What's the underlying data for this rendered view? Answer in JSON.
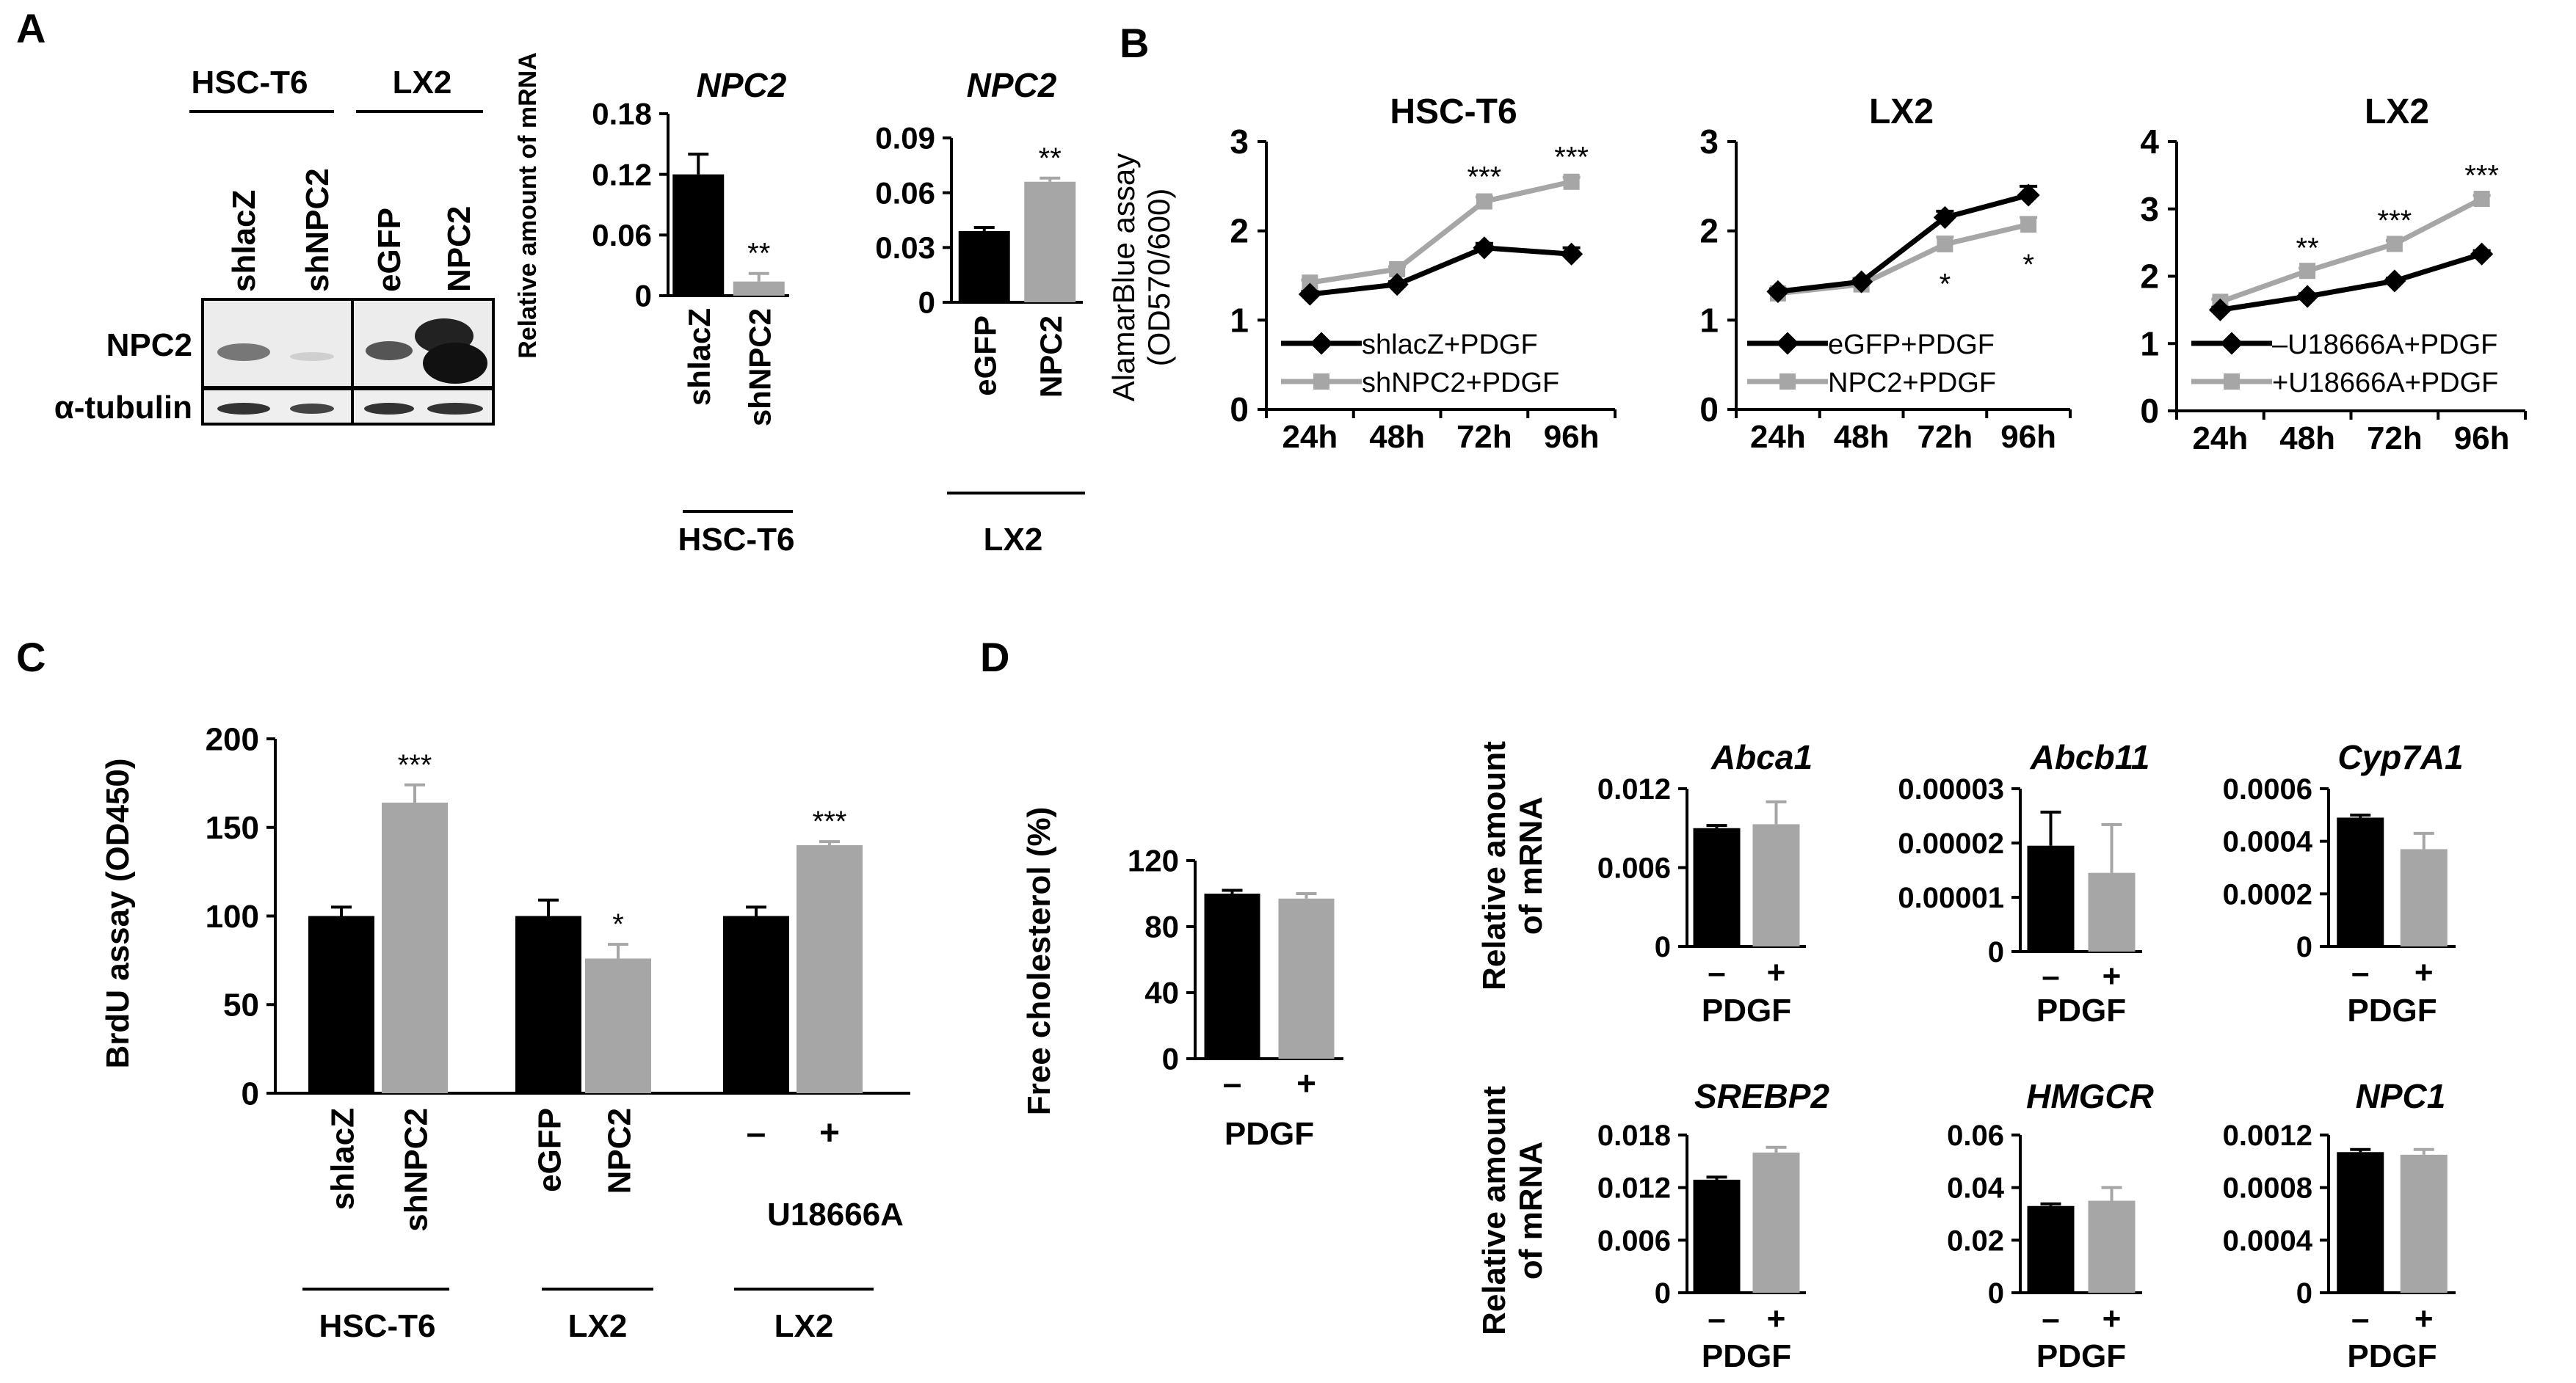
{
  "colors": {
    "dark": "#000000",
    "light": "#a6a6a6",
    "axis": "#000000"
  },
  "panel_labels": [
    "A",
    "B",
    "C",
    "D"
  ],
  "chart_data": [
    {
      "id": "A-blot",
      "type": "table",
      "group_labels": [
        "HSC-T6",
        "LX2"
      ],
      "lane_labels": [
        "shlacZ",
        "shNPC2",
        "eGFP",
        "NPC2"
      ],
      "row_labels": [
        "NPC2",
        "α-tubulin"
      ]
    },
    {
      "id": "A1",
      "type": "bar",
      "title": "NPC2",
      "ylabel": "Relative amount of mRNA",
      "categories": [
        "shlacZ",
        "shNPC2"
      ],
      "values": [
        0.12,
        0.014
      ],
      "errors": [
        0.02,
        0.008
      ],
      "sig": [
        "",
        "**"
      ],
      "ylim": [
        0,
        0.18
      ],
      "yticks": [
        "0",
        "0.06",
        "0.12",
        "0.18"
      ],
      "group_label": "HSC-T6"
    },
    {
      "id": "A2",
      "type": "bar",
      "title": "NPC2",
      "categories": [
        "eGFP",
        "NPC2"
      ],
      "values": [
        0.039,
        0.066
      ],
      "errors": [
        0.002,
        0.002
      ],
      "sig": [
        "",
        "**"
      ],
      "ylim": [
        0,
        0.09
      ],
      "yticks": [
        "0",
        "0.03",
        "0.06",
        "0.09"
      ],
      "group_label": "LX2"
    },
    {
      "id": "B1",
      "type": "line",
      "title": "HSC-T6",
      "ylabel": "AlamarBlue assay (OD570/600)",
      "x": [
        "24h",
        "48h",
        "72h",
        "96h"
      ],
      "ylim": [
        0,
        3
      ],
      "yticks": [
        "0",
        "1",
        "2",
        "3"
      ],
      "series": [
        {
          "name": "shlacZ+PDGF",
          "values": [
            1.29,
            1.4,
            1.81,
            1.74
          ],
          "errors": [
            0.03,
            0.03,
            0.05,
            0.07
          ]
        },
        {
          "name": "shNPC2+PDGF",
          "values": [
            1.42,
            1.57,
            2.33,
            2.55
          ],
          "errors": [
            0.03,
            0.03,
            0.05,
            0.05
          ]
        }
      ],
      "sig": [
        "",
        "",
        "***",
        "***"
      ]
    },
    {
      "id": "B2",
      "type": "line",
      "title": "LX2",
      "x": [
        "24h",
        "48h",
        "72h",
        "96h"
      ],
      "ylim": [
        0,
        3
      ],
      "yticks": [
        "0",
        "1",
        "2",
        "3"
      ],
      "series": [
        {
          "name": "eGFP+PDGF",
          "values": [
            1.32,
            1.43,
            2.15,
            2.4
          ],
          "errors": [
            0.03,
            0.03,
            0.07,
            0.1
          ]
        },
        {
          "name": "NPC2+PDGF",
          "values": [
            1.3,
            1.4,
            1.85,
            2.07
          ],
          "errors": [
            0.03,
            0.03,
            0.08,
            0.08
          ]
        }
      ],
      "sig": [
        "",
        "",
        "*",
        "*"
      ]
    },
    {
      "id": "B3",
      "type": "line",
      "title": "LX2",
      "x": [
        "24h",
        "48h",
        "72h",
        "96h"
      ],
      "ylim": [
        0,
        4
      ],
      "yticks": [
        "0",
        "1",
        "2",
        "3",
        "4"
      ],
      "series": [
        {
          "name": "–U18666A+PDGF",
          "values": [
            1.5,
            1.7,
            1.93,
            2.33
          ],
          "errors": [
            0.04,
            0.04,
            0.04,
            0.05
          ]
        },
        {
          "name": "+U18666A+PDGF",
          "values": [
            1.62,
            2.08,
            2.48,
            3.15
          ],
          "errors": [
            0.04,
            0.04,
            0.05,
            0.05
          ]
        }
      ],
      "sig": [
        "",
        "**",
        "***",
        "***"
      ]
    },
    {
      "id": "C",
      "type": "bar",
      "ylabel": "BrdU assay (OD450)",
      "categories": [
        "shlacZ",
        "shNPC2",
        "eGFP",
        "NPC2",
        "–",
        "+"
      ],
      "values": [
        100,
        164,
        100,
        76,
        100,
        140
      ],
      "errors": [
        5,
        10,
        9,
        8,
        5,
        2
      ],
      "sig": [
        "",
        "***",
        "",
        "*",
        "",
        "***"
      ],
      "ylim": [
        0,
        200
      ],
      "yticks": [
        "0",
        "50",
        "100",
        "150",
        "200"
      ],
      "treatment_label": "U18666A",
      "group_labels": [
        "HSC-T6",
        "LX2",
        "LX2"
      ]
    },
    {
      "id": "D0",
      "type": "bar",
      "ylabel": "Free cholesterol (%)",
      "categories": [
        "–",
        "+"
      ],
      "values": [
        100,
        97
      ],
      "errors": [
        2,
        3
      ],
      "ylim": [
        0,
        120
      ],
      "yticks": [
        "0",
        "40",
        "80",
        "120"
      ],
      "xlabel": "PDGF"
    },
    {
      "id": "D1",
      "type": "bar",
      "title": "Abca1",
      "ylabel": "Relative amount of mRNA",
      "categories": [
        "–",
        "+"
      ],
      "values": [
        0.009,
        0.0093
      ],
      "errors": [
        0.0002,
        0.0017
      ],
      "ylim": [
        0,
        0.012
      ],
      "yticks": [
        "0",
        "0.006",
        "0.012"
      ],
      "xlabel": "PDGF"
    },
    {
      "id": "D2",
      "type": "bar",
      "title": "Abcb11",
      "categories": [
        "–",
        "+"
      ],
      "values": [
        1.95e-05,
        1.45e-05
      ],
      "errors": [
        6.2e-06,
        8.9e-06
      ],
      "ylim": [
        0,
        3e-05
      ],
      "yticks": [
        "0",
        "0.00001",
        "0.00002",
        "0.00003"
      ],
      "xlabel": "PDGF"
    },
    {
      "id": "D3",
      "type": "bar",
      "title": "Cyp7A1",
      "categories": [
        "–",
        "+"
      ],
      "values": [
        0.00049,
        0.00037
      ],
      "errors": [
        1e-05,
        6e-05
      ],
      "ylim": [
        0,
        0.0006
      ],
      "yticks": [
        "0",
        "0.0002",
        "0.0004",
        "0.0006"
      ],
      "xlabel": "PDGF"
    },
    {
      "id": "D4",
      "type": "bar",
      "title": "SREBP2",
      "ylabel": "Relative amount of mRNA",
      "categories": [
        "–",
        "+"
      ],
      "values": [
        0.0129,
        0.016
      ],
      "errors": [
        0.0003,
        0.0006
      ],
      "ylim": [
        0,
        0.018
      ],
      "yticks": [
        "0",
        "0.006",
        "0.012",
        "0.018"
      ],
      "xlabel": "PDGF"
    },
    {
      "id": "D5",
      "type": "bar",
      "title": "HMGCR",
      "categories": [
        "–",
        "+"
      ],
      "values": [
        0.033,
        0.035
      ],
      "errors": [
        0.0008,
        0.005
      ],
      "ylim": [
        0,
        0.06
      ],
      "yticks": [
        "0",
        "0.02",
        "0.04",
        "0.06"
      ],
      "xlabel": "PDGF"
    },
    {
      "id": "D6",
      "type": "bar",
      "title": "NPC1",
      "categories": [
        "–",
        "+"
      ],
      "values": [
        0.00107,
        0.00105
      ],
      "errors": [
        2e-05,
        4e-05
      ],
      "ylim": [
        0,
        0.0012
      ],
      "yticks": [
        "0",
        "0.0004",
        "0.0008",
        "0.0012"
      ],
      "xlabel": "PDGF"
    }
  ]
}
